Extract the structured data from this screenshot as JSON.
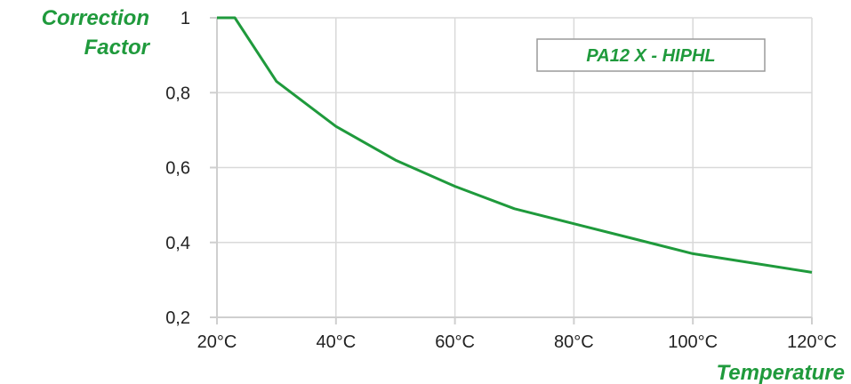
{
  "colors": {
    "series": "#1f9a3c",
    "label": "#1f9a3c",
    "grid": "#d9d9d9",
    "axis": "#cfcfcf",
    "legend_border": "#9a9a9a"
  },
  "chart_data": {
    "type": "line",
    "ylabel_lines": [
      "Correction",
      "Factor"
    ],
    "xlabel": "Temperature",
    "xlim": [
      20,
      120
    ],
    "ylim": [
      0.2,
      1
    ],
    "x_ticks": [
      20,
      40,
      60,
      80,
      100,
      120
    ],
    "x_tick_labels": [
      "20°C",
      "40°C",
      "60°C",
      "80°C",
      "100°C",
      "120°C"
    ],
    "y_ticks": [
      0.2,
      0.4,
      0.6,
      0.8,
      1
    ],
    "y_tick_labels": [
      "0,2",
      "0,4",
      "0,6",
      "0,8",
      "1"
    ],
    "grid": true,
    "legend_position": "top-right",
    "series": [
      {
        "name": "PA12 X - HIPHL",
        "x": [
          20,
          23,
          30,
          40,
          50,
          60,
          70,
          80,
          90,
          100,
          110,
          120
        ],
        "y": [
          1.0,
          1.0,
          0.83,
          0.71,
          0.62,
          0.55,
          0.49,
          0.45,
          0.41,
          0.37,
          0.345,
          0.32
        ]
      }
    ]
  }
}
